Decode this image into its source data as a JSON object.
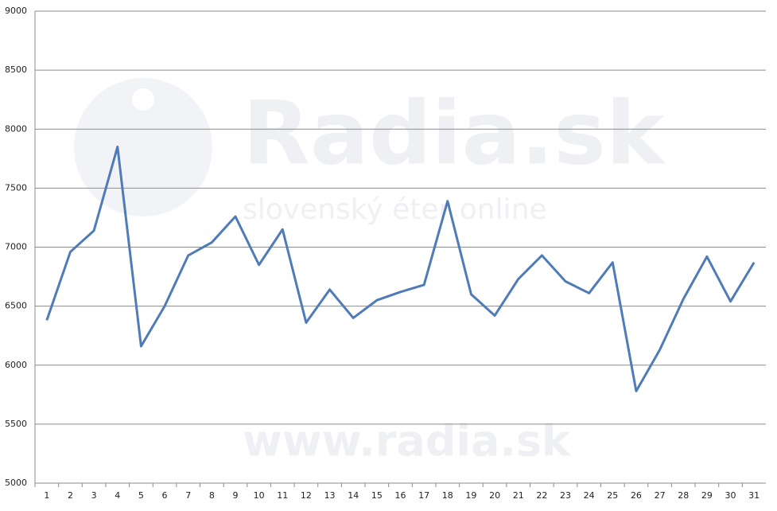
{
  "chart_data": {
    "type": "line",
    "categories": [
      "1",
      "2",
      "3",
      "4",
      "5",
      "6",
      "7",
      "8",
      "9",
      "10",
      "11",
      "12",
      "13",
      "14",
      "15",
      "16",
      "17",
      "18",
      "19",
      "20",
      "21",
      "22",
      "23",
      "24",
      "25",
      "26",
      "27",
      "28",
      "29",
      "30",
      "31"
    ],
    "values": [
      6380,
      6960,
      7140,
      7850,
      6160,
      6500,
      6930,
      7040,
      7260,
      6850,
      7150,
      6360,
      6640,
      6400,
      6550,
      6620,
      6680,
      7390,
      6600,
      6420,
      6730,
      6930,
      6710,
      6610,
      6870,
      5780,
      6130,
      6560,
      6920,
      6540,
      6870
    ],
    "color": "#4f7bb8",
    "ylim": [
      5000,
      9000
    ],
    "yticks": [
      5000,
      5500,
      6000,
      6500,
      7000,
      7500,
      8000,
      8500,
      9000
    ],
    "grid": true,
    "watermark": [
      "Radia.sk",
      "slovenský éter online",
      "www.radia.sk"
    ]
  }
}
